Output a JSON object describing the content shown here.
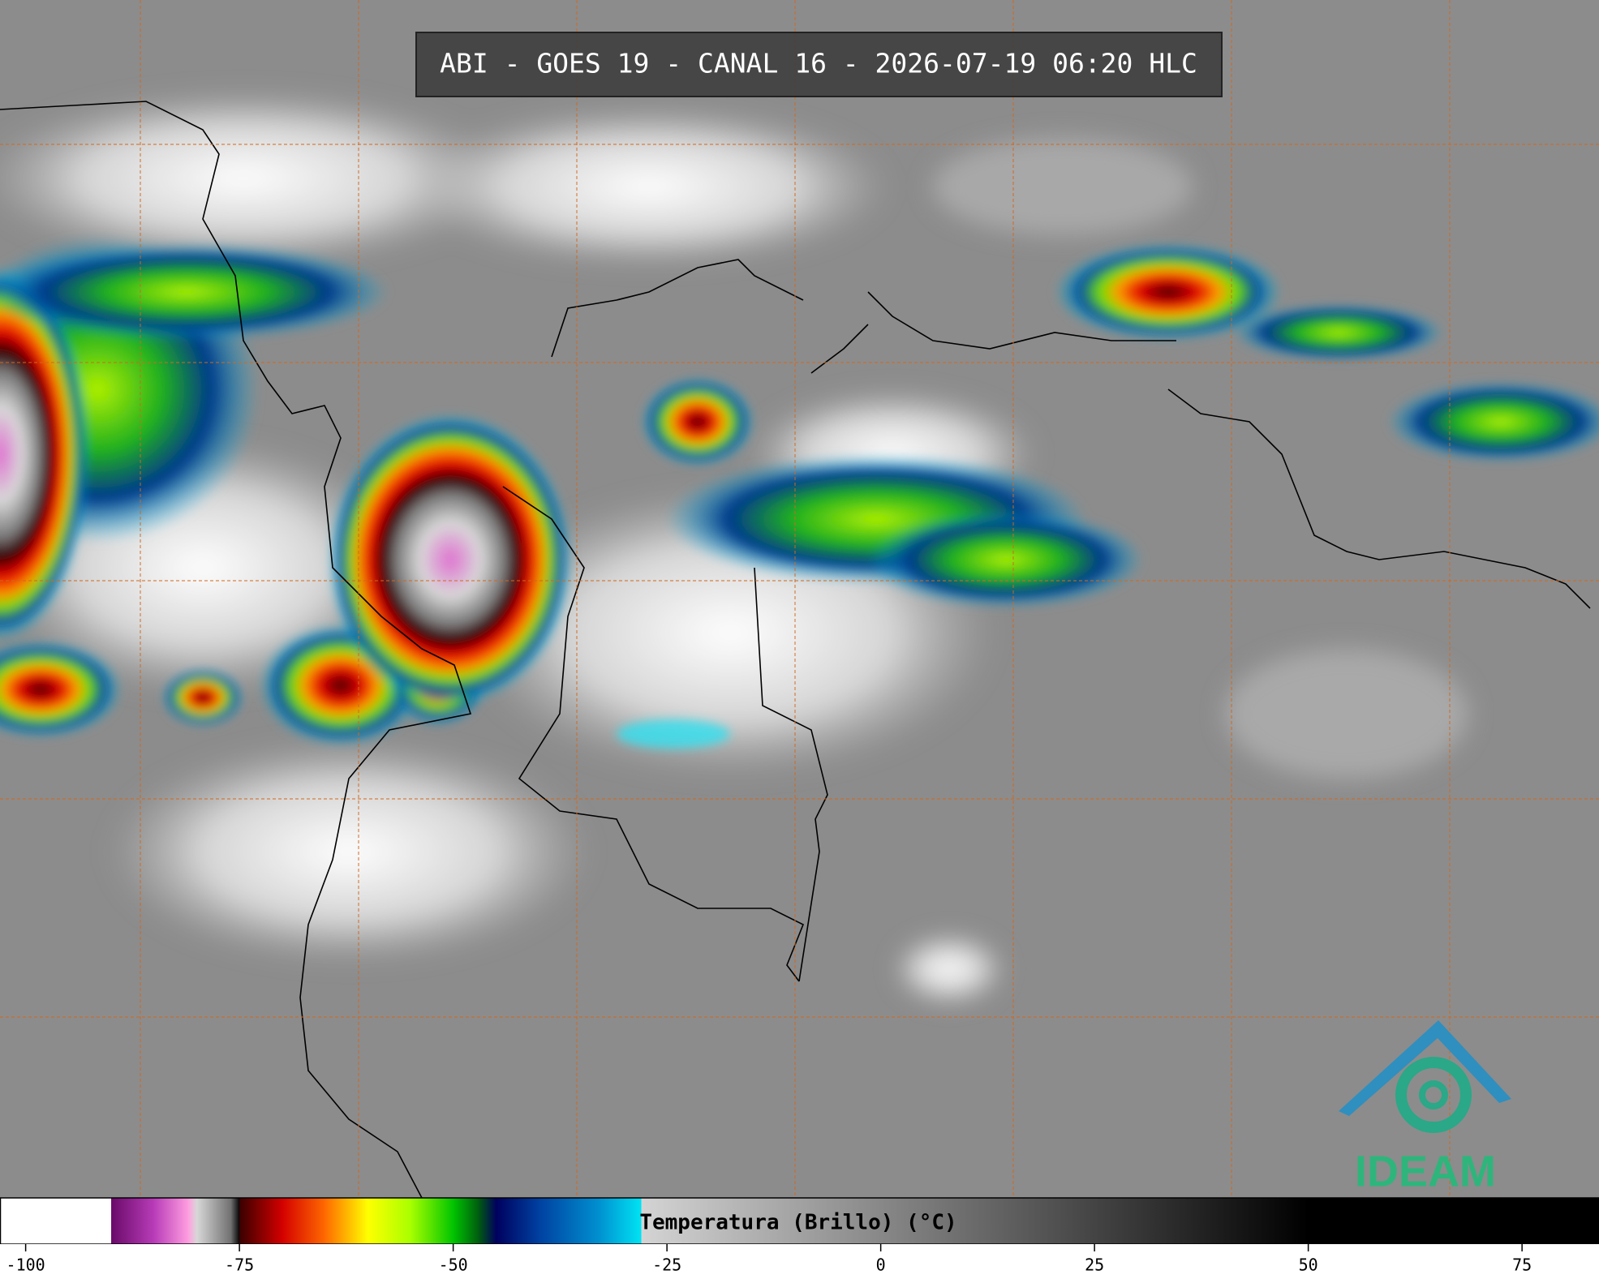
{
  "title": "ABI - GOES 19 - CANAL 16 - 2026-07-19 06:20 HLC",
  "logo": "IDEAM",
  "colorbar": {
    "label": "Temperatura (Brillo) (°C)",
    "xlim": [
      -103,
      84
    ],
    "xticks": [
      -100,
      -75,
      -50,
      -25,
      0,
      25,
      50,
      75
    ],
    "colorscale": [
      {
        "value": -103,
        "color": "#ffffff"
      },
      {
        "value": -90,
        "color": "#ffffff"
      },
      {
        "value": -90,
        "color": "#6a0a6a"
      },
      {
        "value": -85,
        "color": "#b83cb8"
      },
      {
        "value": -81,
        "color": "#ff9ee0"
      },
      {
        "value": -80,
        "color": "#d8d8d8"
      },
      {
        "value": -76,
        "color": "#707070"
      },
      {
        "value": -75,
        "color": "#000000"
      },
      {
        "value": -75,
        "color": "#3a0000"
      },
      {
        "value": -70,
        "color": "#d40000"
      },
      {
        "value": -65,
        "color": "#ff6a00"
      },
      {
        "value": -60,
        "color": "#ffff00"
      },
      {
        "value": -55,
        "color": "#a8ff00"
      },
      {
        "value": -50,
        "color": "#00c400"
      },
      {
        "value": -47,
        "color": "#005a10"
      },
      {
        "value": -45,
        "color": "#00005e"
      },
      {
        "value": -40,
        "color": "#0040a0"
      },
      {
        "value": -33,
        "color": "#0090d0"
      },
      {
        "value": -28,
        "color": "#00e4f4"
      },
      {
        "value": -28,
        "color": "#d4d4d4"
      },
      {
        "value": 50,
        "color": "#000000"
      },
      {
        "value": 84,
        "color": "#000000"
      }
    ]
  }
}
